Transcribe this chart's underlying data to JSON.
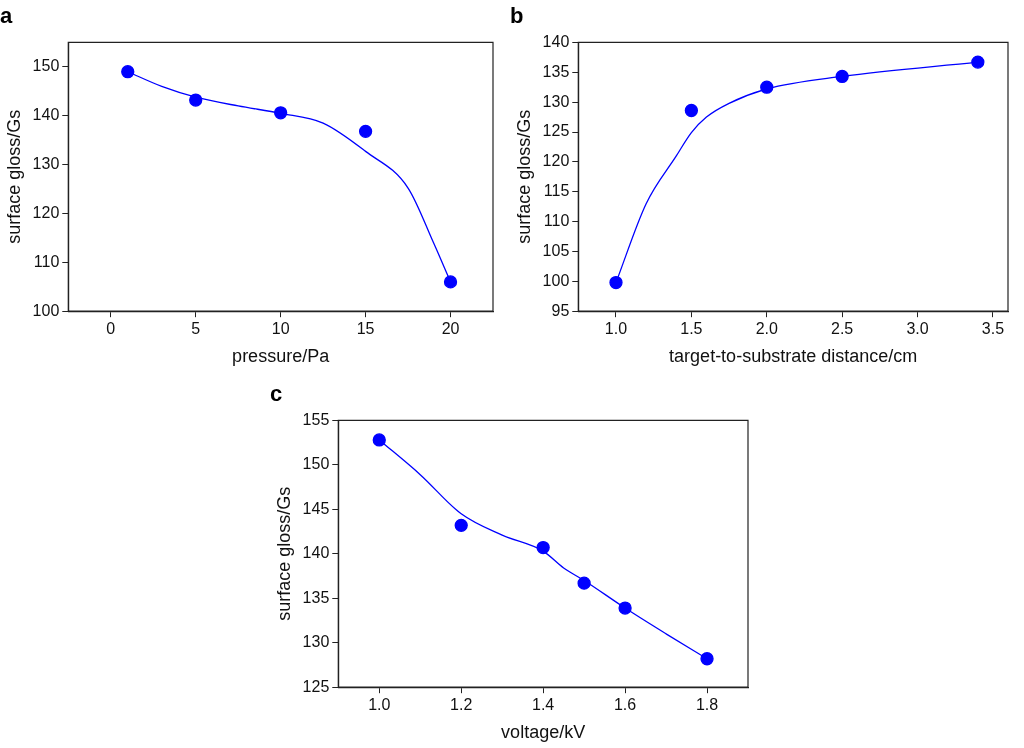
{
  "chart_data": [
    {
      "type": "scatter",
      "title": "a",
      "xlabel": "pressure/Pa",
      "ylabel": "surface gloss/Gs",
      "xlim": [
        -2.5,
        22.5
      ],
      "xticks": [
        0,
        5,
        10,
        15,
        20
      ],
      "ylim": [
        100,
        155
      ],
      "yticks": [
        100,
        110,
        120,
        130,
        140,
        150
      ],
      "grid": false,
      "legend": false,
      "series": [
        {
          "color": "#0000ff",
          "marker": "circle",
          "x": [
            1,
            5,
            10,
            15,
            20
          ],
          "values": [
            149,
            143.2,
            140.6,
            136.8,
            106
          ]
        },
        {
          "type": "line",
          "color": "#0000ff",
          "marker": "none",
          "x": [
            1,
            3,
            5,
            7.5,
            10,
            12.5,
            15,
            17.5,
            19,
            20
          ],
          "values": [
            149,
            146,
            143.8,
            142,
            140.5,
            138.5,
            132.7,
            125.2,
            114,
            106
          ]
        }
      ]
    },
    {
      "type": "scatter",
      "title": "b",
      "xlabel": "target-to-substrate distance/cm",
      "ylabel": "surface gloss/Gs",
      "xlim": [
        0.75,
        3.6
      ],
      "xticks": [
        {
          "value": 1,
          "label": "1.0"
        },
        1.5,
        {
          "value": 2,
          "label": "2.0"
        },
        2.5,
        {
          "value": 3,
          "label": "3.0"
        },
        3.5
      ],
      "ylim": [
        95,
        140
      ],
      "yticks": [
        95,
        100,
        105,
        110,
        115,
        120,
        125,
        130,
        135,
        140
      ],
      "grid": false,
      "legend": false,
      "series": [
        {
          "color": "#0000ff",
          "marker": "circle",
          "x": [
            1.0,
            1.5,
            2.0,
            2.5,
            3.4
          ],
          "values": [
            99.8,
            128.6,
            132.5,
            134.3,
            136.7
          ]
        },
        {
          "type": "line",
          "color": "#0000ff",
          "marker": "none",
          "x": [
            1.0,
            1.2,
            1.4,
            1.5,
            1.6,
            1.75,
            2.0,
            2.5,
            3.4
          ],
          "values": [
            99.8,
            113,
            121,
            124.9,
            127.5,
            129.8,
            132.2,
            134.3,
            136.7
          ]
        }
      ]
    },
    {
      "type": "scatter",
      "title": "c",
      "xlabel": "voltage/kV",
      "ylabel": "surface gloss/Gs",
      "xlim": [
        0.9,
        1.9
      ],
      "xticks": [
        {
          "value": 1,
          "label": "1.0"
        },
        1.2,
        1.4,
        1.6,
        1.8
      ],
      "ylim": [
        125,
        155
      ],
      "yticks": [
        125,
        130,
        135,
        140,
        145,
        150,
        155
      ],
      "grid": false,
      "legend": false,
      "series": [
        {
          "color": "#0000ff",
          "marker": "circle",
          "x": [
            1.0,
            1.2,
            1.4,
            1.5,
            1.6,
            1.8
          ],
          "values": [
            152.8,
            143.2,
            140.7,
            136.7,
            133.9,
            128.2
          ]
        },
        {
          "type": "line",
          "color": "#0000ff",
          "marker": "none",
          "x": [
            1.0,
            1.1,
            1.2,
            1.3,
            1.4,
            1.45,
            1.5,
            1.6,
            1.7,
            1.8
          ],
          "values": [
            152.8,
            148.9,
            144.5,
            142.1,
            140.3,
            138.4,
            137,
            133.9,
            131,
            128.2
          ]
        }
      ]
    }
  ]
}
